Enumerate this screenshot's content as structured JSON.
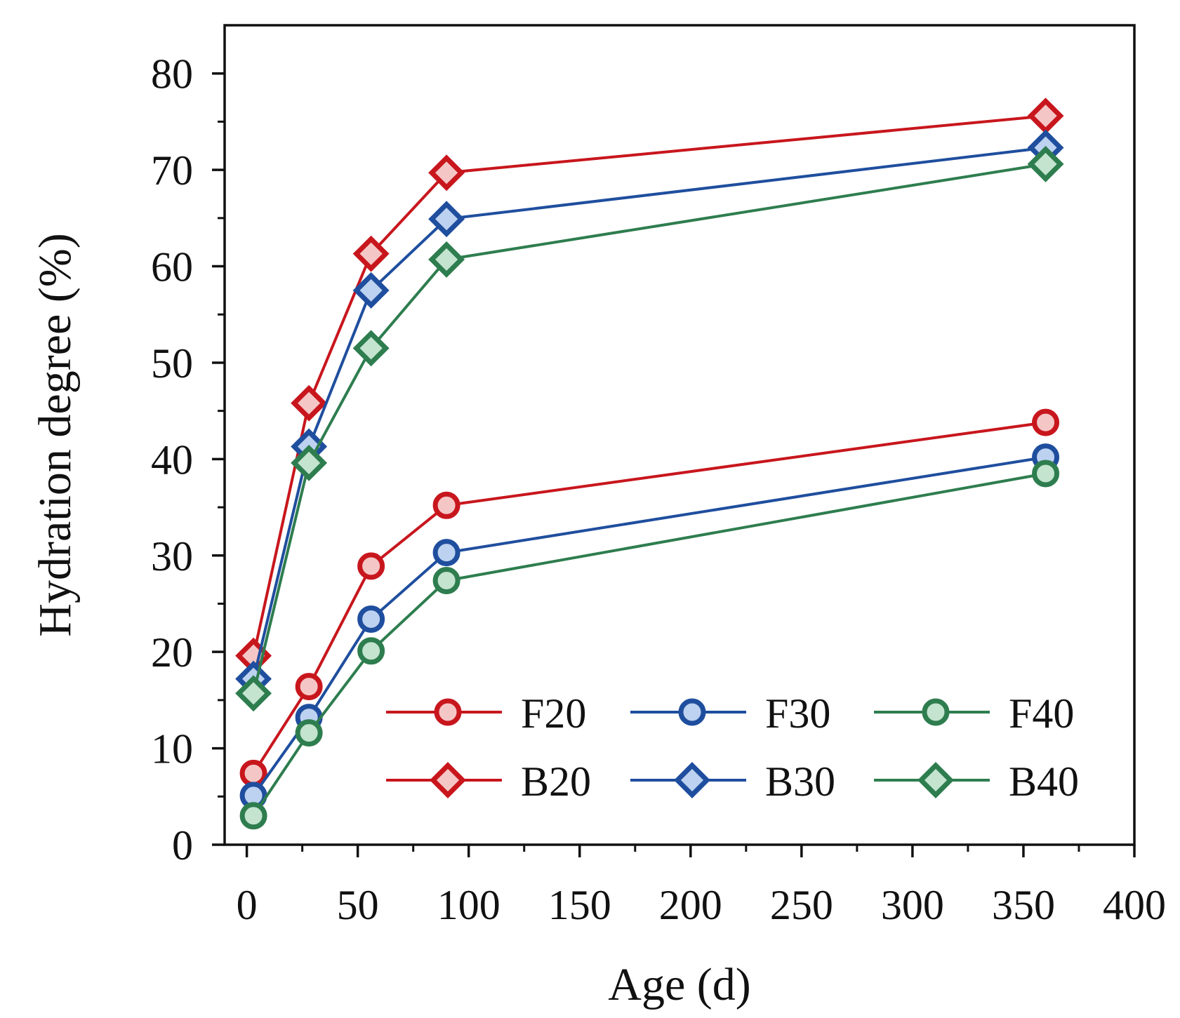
{
  "chart_data": {
    "type": "line",
    "title": "",
    "xlabel": "Age (d)",
    "ylabel": "Hydration degree (%)",
    "xlim": [
      -10,
      400
    ],
    "ylim": [
      0,
      85
    ],
    "x_ticks": [
      0,
      50,
      100,
      150,
      200,
      250,
      300,
      350,
      400
    ],
    "y_ticks": [
      0,
      10,
      20,
      30,
      40,
      50,
      60,
      70,
      80
    ],
    "x_tick_labels": [
      "0",
      "50",
      "100",
      "150",
      "200",
      "250",
      "300",
      "350",
      "400"
    ],
    "y_tick_labels": [
      "0",
      "10",
      "20",
      "30",
      "40",
      "50",
      "60",
      "70",
      "80"
    ],
    "grid": false,
    "legend_position": "bottom-right",
    "series": [
      {
        "name": "F20",
        "marker": "circle",
        "color": "#c8161d",
        "fill": "#f5c6c6",
        "x": [
          3,
          28,
          56,
          90,
          360
        ],
        "y": [
          7.4,
          16.4,
          28.9,
          35.2,
          43.8
        ]
      },
      {
        "name": "F30",
        "marker": "circle",
        "color": "#1f4e9e",
        "fill": "#bdd2f0",
        "x": [
          3,
          28,
          56,
          90,
          360
        ],
        "y": [
          5.1,
          13.2,
          23.4,
          30.3,
          40.2
        ]
      },
      {
        "name": "F40",
        "marker": "circle",
        "color": "#2e7d4f",
        "fill": "#c4e4cf",
        "x": [
          3,
          28,
          56,
          90,
          360
        ],
        "y": [
          3.0,
          11.6,
          20.1,
          27.4,
          38.5
        ]
      },
      {
        "name": "B20",
        "marker": "diamond",
        "color": "#c8161d",
        "fill": "#f5c6c6",
        "x": [
          3,
          28,
          56,
          90,
          360
        ],
        "y": [
          19.6,
          45.8,
          61.3,
          69.7,
          75.6
        ]
      },
      {
        "name": "B30",
        "marker": "diamond",
        "color": "#1f4e9e",
        "fill": "#bdd2f0",
        "x": [
          3,
          28,
          56,
          90,
          360
        ],
        "y": [
          17.2,
          41.3,
          57.5,
          64.9,
          72.3
        ]
      },
      {
        "name": "B40",
        "marker": "diamond",
        "color": "#2e7d4f",
        "fill": "#c4e4cf",
        "x": [
          3,
          28,
          56,
          90,
          360
        ],
        "y": [
          15.7,
          39.6,
          51.5,
          60.7,
          70.6
        ]
      }
    ]
  }
}
